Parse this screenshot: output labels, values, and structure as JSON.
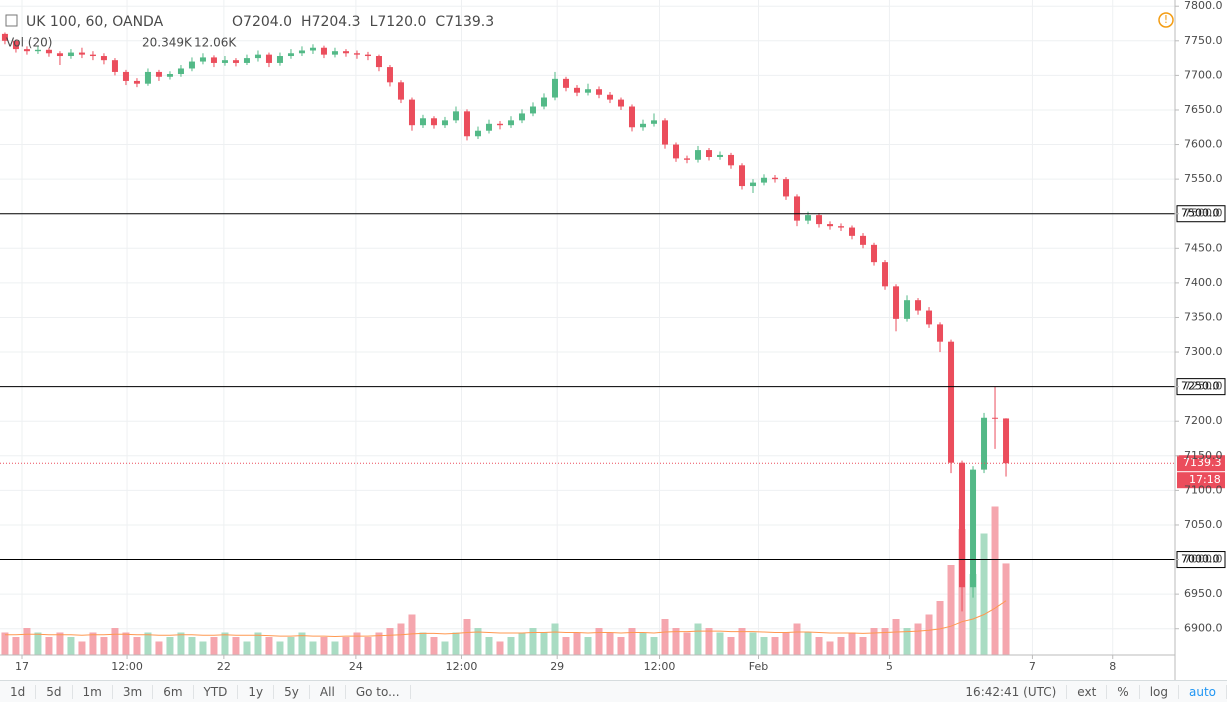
{
  "chart_data": {
    "type": "candlestick",
    "title": "UK 100, 60, OANDA",
    "ohlc_legend": [
      {
        "key": "O",
        "value": "7204.0"
      },
      {
        "key": "H",
        "value": "7204.3"
      },
      {
        "key": "L",
        "value": "7120.0"
      },
      {
        "key": "C",
        "value": "7139.3"
      }
    ],
    "volume_legend": {
      "name": "Vol (20)",
      "value": "20.349K",
      "ma": "12.06K"
    },
    "xlim": [
      -0.45,
      106.36
    ],
    "xticks": [
      {
        "value": 1.55,
        "label": "17"
      },
      {
        "value": 11.1,
        "label": "12:00"
      },
      {
        "value": 19.9,
        "label": "22"
      },
      {
        "value": 31.9,
        "label": "24"
      },
      {
        "value": 41.5,
        "label": "12:00"
      },
      {
        "value": 50.2,
        "label": "29"
      },
      {
        "value": 59.5,
        "label": "12:00"
      },
      {
        "value": 68.5,
        "label": "Feb"
      },
      {
        "value": 80.4,
        "label": "5"
      },
      {
        "value": 93.4,
        "label": "7"
      },
      {
        "value": 100.7,
        "label": "8"
      }
    ],
    "ylim": [
      6862,
      7809
    ],
    "yticks": [
      {
        "value": 7800,
        "label": "7800.0"
      },
      {
        "value": 7750,
        "label": "7750.0"
      },
      {
        "value": 7700,
        "label": "7700.0"
      },
      {
        "value": 7650,
        "label": "7650.0"
      },
      {
        "value": 7600,
        "label": "7600.0"
      },
      {
        "value": 7550,
        "label": "7550.0"
      },
      {
        "value": 7500,
        "label": "7500.0"
      },
      {
        "value": 7450,
        "label": "7450.0"
      },
      {
        "value": 7400,
        "label": "7400.0"
      },
      {
        "value": 7350,
        "label": "7350.0"
      },
      {
        "value": 7300,
        "label": "7300.0"
      },
      {
        "value": 7250,
        "label": "7250.0"
      },
      {
        "value": 7200,
        "label": "7200.0"
      },
      {
        "value": 7150,
        "label": "7150.0"
      },
      {
        "value": 7100,
        "label": "7100.0"
      },
      {
        "value": 7050,
        "label": "7050.0"
      },
      {
        "value": 7000,
        "label": "7000.0"
      },
      {
        "value": 6950,
        "label": "6950.0"
      },
      {
        "value": 6900,
        "label": "6900.0"
      }
    ],
    "grid": true,
    "up_color": "#53b987",
    "down_color": "#eb4d5c",
    "volume_up_color": "#a9dcc3",
    "volume_down_color": "#f5a6ae",
    "volume_ma_color": "#ff9850",
    "open": [
      7760,
      7750,
      7738,
      7735,
      7737,
      7732,
      7728,
      7733,
      7730,
      7728,
      7722,
      7705,
      7692,
      7688,
      7705,
      7698,
      7702,
      7710,
      7720,
      7726,
      7718,
      7722,
      7718,
      7725,
      7730,
      7718,
      7728,
      7732,
      7736,
      7740,
      7730,
      7735,
      7732,
      7730,
      7728,
      7712,
      7690,
      7665,
      7628,
      7638,
      7628,
      7635,
      7648,
      7612,
      7620,
      7630,
      7628,
      7635,
      7645,
      7655,
      7668,
      7695,
      7682,
      7675,
      7680,
      7672,
      7665,
      7655,
      7625,
      7630,
      7635,
      7600,
      7580,
      7578,
      7592,
      7582,
      7585,
      7570,
      7540,
      7545,
      7552,
      7550,
      7525,
      7490,
      7498,
      7485,
      7482,
      7480,
      7468,
      7455,
      7430,
      7395,
      7348,
      7375,
      7360,
      7340,
      7315,
      7140,
      6960,
      7130,
      7205,
      7204.0
    ],
    "high": [
      7762,
      7752,
      7742,
      7742,
      7740,
      7735,
      7738,
      7740,
      7735,
      7732,
      7725,
      7708,
      7696,
      7710,
      7708,
      7706,
      7715,
      7726,
      7732,
      7729,
      7728,
      7725,
      7730,
      7736,
      7733,
      7733,
      7738,
      7742,
      7745,
      7743,
      7740,
      7738,
      7736,
      7734,
      7730,
      7715,
      7693,
      7668,
      7643,
      7641,
      7640,
      7655,
      7651,
      7626,
      7636,
      7634,
      7641,
      7651,
      7661,
      7674,
      7705,
      7698,
      7686,
      7688,
      7684,
      7676,
      7668,
      7658,
      7636,
      7645,
      7638,
      7603,
      7584,
      7598,
      7595,
      7590,
      7588,
      7573,
      7550,
      7557,
      7556,
      7553,
      7528,
      7503,
      7501,
      7489,
      7486,
      7483,
      7472,
      7458,
      7433,
      7398,
      7382,
      7378,
      7365,
      7343,
      7318,
      7143,
      7135,
      7212,
      7250,
      7204.3
    ],
    "low": [
      7745,
      7733,
      7730,
      7731,
      7727,
      7715,
      7724,
      7725,
      7722,
      7716,
      7700,
      7686,
      7683,
      7685,
      7692,
      7694,
      7698,
      7706,
      7716,
      7712,
      7714,
      7713,
      7715,
      7720,
      7712,
      7714,
      7724,
      7728,
      7731,
      7725,
      7726,
      7727,
      7724,
      7722,
      7706,
      7684,
      7660,
      7620,
      7624,
      7623,
      7624,
      7631,
      7606,
      7608,
      7616,
      7622,
      7624,
      7631,
      7641,
      7651,
      7664,
      7677,
      7670,
      7671,
      7667,
      7660,
      7650,
      7619,
      7620,
      7626,
      7594,
      7575,
      7573,
      7574,
      7577,
      7578,
      7565,
      7535,
      7530,
      7541,
      7545,
      7520,
      7482,
      7485,
      7480,
      7477,
      7475,
      7463,
      7450,
      7425,
      7390,
      7330,
      7344,
      7354,
      7335,
      7300,
      7125,
      6925,
      6945,
      7125,
      7160,
      7120.0
    ],
    "close": [
      7750,
      7738,
      7735,
      7737,
      7732,
      7728,
      7733,
      7730,
      7728,
      7722,
      7705,
      7692,
      7688,
      7705,
      7698,
      7702,
      7710,
      7720,
      7726,
      7718,
      7722,
      7718,
      7725,
      7730,
      7718,
      7728,
      7732,
      7736,
      7740,
      7730,
      7735,
      7732,
      7730,
      7728,
      7712,
      7690,
      7665,
      7628,
      7638,
      7628,
      7635,
      7648,
      7612,
      7620,
      7630,
      7628,
      7635,
      7645,
      7655,
      7668,
      7695,
      7682,
      7675,
      7680,
      7672,
      7665,
      7655,
      7625,
      7630,
      7635,
      7600,
      7580,
      7578,
      7592,
      7582,
      7585,
      7570,
      7540,
      7545,
      7552,
      7550,
      7525,
      7490,
      7498,
      7485,
      7482,
      7480,
      7468,
      7455,
      7430,
      7395,
      7348,
      7375,
      7360,
      7340,
      7315,
      7140,
      6960,
      7130,
      7205,
      7204,
      7139.3
    ],
    "volume_lim": [
      0,
      40
    ],
    "volume": [
      5,
      4,
      6,
      5,
      4,
      5,
      4,
      3,
      5,
      4,
      6,
      5,
      4,
      5,
      3,
      4,
      5,
      4,
      3,
      4,
      5,
      4,
      3,
      5,
      4,
      3,
      4,
      5,
      3,
      4,
      3,
      4,
      5,
      4,
      5,
      6,
      7,
      9,
      5,
      4,
      3,
      5,
      8,
      6,
      4,
      3,
      4,
      5,
      6,
      5,
      7,
      4,
      5,
      4,
      6,
      5,
      4,
      6,
      5,
      4,
      8,
      6,
      5,
      7,
      6,
      5,
      4,
      6,
      5,
      4,
      4,
      5,
      7,
      5,
      4,
      3,
      4,
      5,
      4,
      6,
      6,
      8,
      6,
      7,
      9,
      12,
      20,
      28,
      18,
      27,
      33,
      20.349
    ],
    "volume_ma": [
      4.5,
      4.5,
      4.6,
      4.6,
      4.5,
      4.5,
      4.5,
      4.4,
      4.5,
      4.5,
      4.6,
      4.6,
      4.5,
      4.5,
      4.4,
      4.4,
      4.5,
      4.5,
      4.4,
      4.4,
      4.5,
      4.4,
      4.4,
      4.4,
      4.3,
      4.2,
      4.2,
      4.3,
      4.2,
      4.2,
      4.1,
      4.2,
      4.2,
      4.2,
      4.3,
      4.4,
      4.5,
      4.7,
      4.8,
      4.8,
      4.7,
      4.8,
      5.0,
      5.1,
      5.0,
      4.9,
      4.9,
      4.9,
      5.0,
      5.0,
      5.1,
      5.0,
      5.0,
      4.9,
      5.0,
      5.0,
      4.9,
      5.0,
      5.0,
      4.9,
      5.1,
      5.2,
      5.2,
      5.3,
      5.3,
      5.3,
      5.2,
      5.2,
      5.2,
      5.1,
      5.0,
      5.0,
      5.1,
      5.1,
      5.0,
      4.9,
      4.9,
      4.9,
      4.8,
      4.9,
      5.0,
      5.1,
      5.2,
      5.3,
      5.5,
      5.8,
      6.4,
      7.4,
      8.0,
      9.0,
      10.4,
      12.06
    ],
    "levels": [
      {
        "value": 7500,
        "label": "7500.0"
      },
      {
        "value": 7250,
        "label": "7250.0"
      },
      {
        "value": 7000,
        "label": "7000.0"
      }
    ],
    "last_price": 7139.3,
    "countdown": "17:18"
  },
  "toolbar": {
    "ranges": [
      "1d",
      "5d",
      "1m",
      "3m",
      "6m",
      "YTD",
      "1y",
      "5y",
      "All"
    ],
    "goto": "Go to...",
    "clock": "16:42:41 (UTC)",
    "options": [
      "ext",
      "%",
      "log",
      "auto"
    ]
  }
}
